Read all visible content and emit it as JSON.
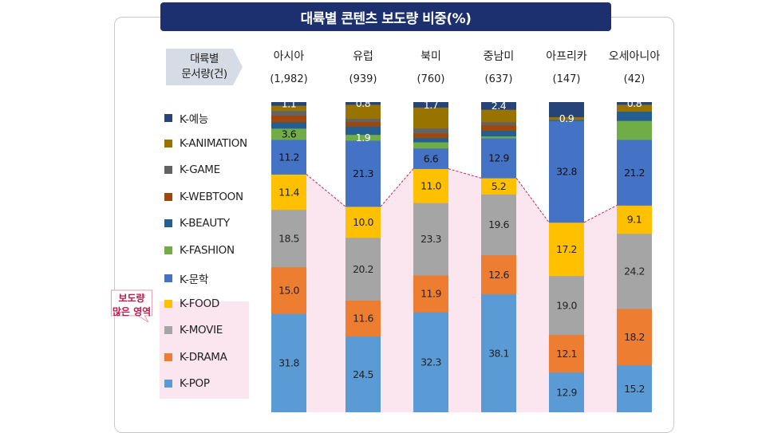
{
  "title": "대륙별 콘텐츠 보도량 비중(%)",
  "header_label": [
    "대륙별",
    "문서량(건)"
  ],
  "callout": [
    "보도량",
    "많은 영역"
  ],
  "chart_data": {
    "type": "bar",
    "stacked": true,
    "title": "대륙별 콘텐츠 보도량 비중(%)",
    "categories": [
      "아시아",
      "유럽",
      "북미",
      "중남미",
      "아프리카",
      "오세아니아"
    ],
    "counts": [
      "(1,982)",
      "(939)",
      "(760)",
      "(637)",
      "(147)",
      "(42)"
    ],
    "ylim": [
      0,
      100
    ],
    "legend_position": "left",
    "highlight": "K-POP, K-DRAMA, K-MOVIE, K-FOOD (pink shaded area)",
    "series": [
      {
        "name": "K-POP",
        "color": "#5b9bd5",
        "values": [
          31.8,
          24.5,
          32.3,
          38.1,
          12.9,
          15.2
        ],
        "labels": [
          "31.8",
          "24.5",
          "32.3",
          "38.1",
          "12.9",
          "15.2"
        ]
      },
      {
        "name": "K-DRAMA",
        "color": "#ed7d31",
        "values": [
          15.0,
          11.6,
          11.9,
          12.6,
          12.1,
          18.2
        ],
        "labels": [
          "15.0",
          "11.6",
          "11.9",
          "12.6",
          "12.1",
          "18.2"
        ]
      },
      {
        "name": "K-MOVIE",
        "color": "#a5a5a5",
        "values": [
          18.5,
          20.2,
          23.3,
          19.6,
          19.0,
          24.2
        ],
        "labels": [
          "18.5",
          "20.2",
          "23.3",
          "19.6",
          "19.0",
          "24.2"
        ]
      },
      {
        "name": "K-FOOD",
        "color": "#ffc000",
        "values": [
          11.4,
          10.0,
          11.0,
          5.2,
          17.2,
          9.1
        ],
        "labels": [
          "11.4",
          "10.0",
          "11.0",
          "5.2",
          "17.2",
          "9.1"
        ]
      },
      {
        "name": "K-문학",
        "color": "#4472c4",
        "values": [
          11.2,
          21.3,
          6.6,
          12.9,
          32.8,
          21.2
        ],
        "labels": [
          "11.2",
          "21.3",
          "6.6",
          "12.9",
          "32.8",
          "21.2"
        ]
      },
      {
        "name": "K-FASHION",
        "color": "#70ad47",
        "values": [
          3.6,
          1.9,
          2.0,
          0.6,
          0.0,
          6.1
        ],
        "labels": [
          "3.6",
          "1.9",
          "",
          "",
          "",
          ""
        ]
      },
      {
        "name": "K-BEAUTY",
        "color": "#255e91",
        "values": [
          2.0,
          2.7,
          1.4,
          1.8,
          0.3,
          3.0
        ],
        "labels": [
          "",
          "",
          "",
          "",
          "",
          ""
        ]
      },
      {
        "name": "K-WEBTOON",
        "color": "#9e480e",
        "values": [
          2.2,
          1.5,
          1.5,
          1.8,
          0.0,
          0.0
        ],
        "labels": [
          "",
          "",
          "",
          "",
          "",
          ""
        ]
      },
      {
        "name": "K-GAME",
        "color": "#636363",
        "values": [
          1.5,
          1.0,
          1.6,
          1.0,
          0.0,
          0.0
        ],
        "labels": [
          "",
          "",
          "",
          "",
          "",
          ""
        ]
      },
      {
        "name": "K-ANIMATION",
        "color": "#997300",
        "values": [
          1.7,
          4.5,
          6.7,
          4.0,
          0.9,
          2.2
        ],
        "labels": [
          "",
          "",
          "",
          "",
          "0.9",
          ""
        ]
      },
      {
        "name": "K-예능",
        "color": "#264478",
        "values": [
          1.1,
          0.8,
          1.7,
          2.4,
          4.8,
          0.8
        ],
        "labels": [
          "1.1",
          "0.8",
          "1.7",
          "2.4",
          "",
          "0.8"
        ]
      }
    ]
  }
}
